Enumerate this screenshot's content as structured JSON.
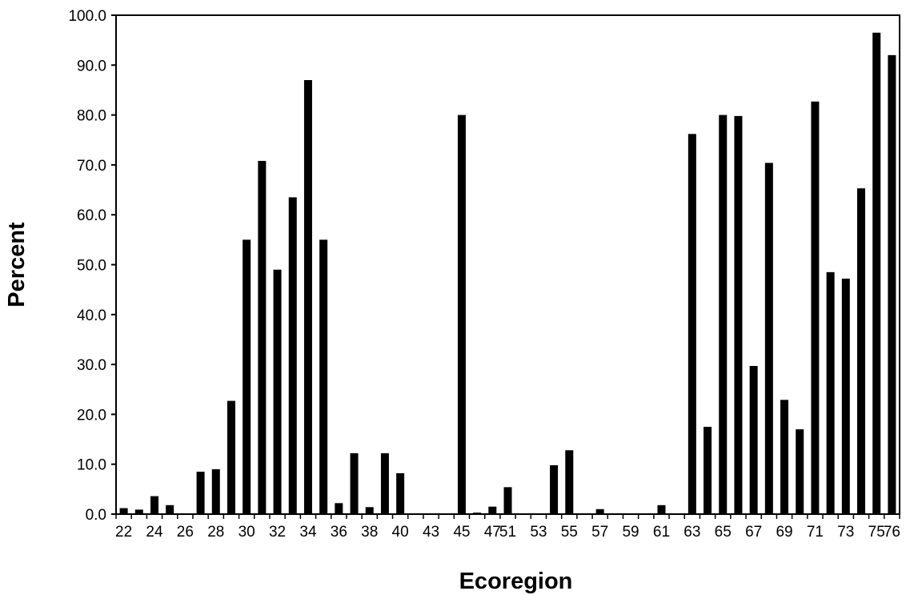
{
  "chart_data": {
    "type": "bar",
    "title": "",
    "xlabel": "Ecoregion",
    "ylabel": "Percent",
    "ylim": [
      0,
      100
    ],
    "yticks": [
      "0.0",
      "10.0",
      "20.0",
      "30.0",
      "40.0",
      "50.0",
      "60.0",
      "70.0",
      "80.0",
      "90.0",
      "100.0"
    ],
    "grid": false,
    "legend": "none",
    "bar_color": "#000000",
    "categories": [
      "22",
      "23",
      "24",
      "25",
      "26",
      "27",
      "28",
      "29",
      "30",
      "31",
      "32",
      "33",
      "34",
      "35",
      "36",
      "37",
      "38",
      "39",
      "40",
      "41",
      "43",
      "44",
      "45",
      "46",
      "47",
      "51",
      "52",
      "53",
      "54",
      "55",
      "56",
      "57",
      "58",
      "59",
      "60",
      "61",
      "62",
      "63",
      "64",
      "65",
      "66",
      "67",
      "68",
      "69",
      "70",
      "71",
      "72",
      "73",
      "74",
      "75",
      "76"
    ],
    "tick_labels": [
      "22",
      "",
      "24",
      "",
      "26",
      "",
      "28",
      "",
      "30",
      "",
      "32",
      "",
      "34",
      "",
      "36",
      "",
      "38",
      "",
      "40",
      "",
      "43",
      "",
      "45",
      "",
      "47",
      "51",
      "",
      "53",
      "",
      "55",
      "",
      "57",
      "",
      "59",
      "",
      "61",
      "",
      "63",
      "",
      "65",
      "",
      "67",
      "",
      "69",
      "",
      "71",
      "",
      "73",
      "",
      "75",
      "76"
    ],
    "values": [
      1.2,
      0.9,
      3.6,
      1.8,
      0,
      8.5,
      9.0,
      22.7,
      55.0,
      70.8,
      49.0,
      63.5,
      87.0,
      55.0,
      2.2,
      12.2,
      1.4,
      12.2,
      8.2,
      0,
      0,
      0,
      80.0,
      0.3,
      1.5,
      5.4,
      0,
      0,
      9.8,
      12.8,
      0,
      1.0,
      0,
      0,
      0,
      1.8,
      0,
      76.2,
      17.5,
      80.0,
      79.8,
      29.7,
      70.4,
      22.9,
      17.0,
      82.7,
      48.5,
      47.2,
      65.3,
      96.5,
      92.0
    ]
  }
}
